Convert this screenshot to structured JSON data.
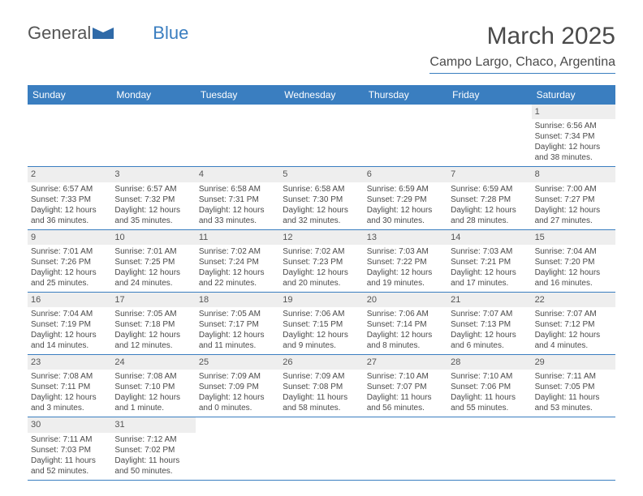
{
  "logo": {
    "part1": "General",
    "part2": "Blue"
  },
  "title": "March 2025",
  "location": "Campo Largo, Chaco, Argentina",
  "day_headers": [
    "Sunday",
    "Monday",
    "Tuesday",
    "Wednesday",
    "Thursday",
    "Friday",
    "Saturday"
  ],
  "colors": {
    "accent": "#3a7ec0",
    "header_cell_bg": "#eeeeee",
    "text": "#4a4a4a"
  },
  "weeks": [
    [
      null,
      null,
      null,
      null,
      null,
      null,
      {
        "d": "1",
        "sr": "Sunrise: 6:56 AM",
        "ss": "Sunset: 7:34 PM",
        "dl1": "Daylight: 12 hours",
        "dl2": "and 38 minutes."
      }
    ],
    [
      {
        "d": "2",
        "sr": "Sunrise: 6:57 AM",
        "ss": "Sunset: 7:33 PM",
        "dl1": "Daylight: 12 hours",
        "dl2": "and 36 minutes."
      },
      {
        "d": "3",
        "sr": "Sunrise: 6:57 AM",
        "ss": "Sunset: 7:32 PM",
        "dl1": "Daylight: 12 hours",
        "dl2": "and 35 minutes."
      },
      {
        "d": "4",
        "sr": "Sunrise: 6:58 AM",
        "ss": "Sunset: 7:31 PM",
        "dl1": "Daylight: 12 hours",
        "dl2": "and 33 minutes."
      },
      {
        "d": "5",
        "sr": "Sunrise: 6:58 AM",
        "ss": "Sunset: 7:30 PM",
        "dl1": "Daylight: 12 hours",
        "dl2": "and 32 minutes."
      },
      {
        "d": "6",
        "sr": "Sunrise: 6:59 AM",
        "ss": "Sunset: 7:29 PM",
        "dl1": "Daylight: 12 hours",
        "dl2": "and 30 minutes."
      },
      {
        "d": "7",
        "sr": "Sunrise: 6:59 AM",
        "ss": "Sunset: 7:28 PM",
        "dl1": "Daylight: 12 hours",
        "dl2": "and 28 minutes."
      },
      {
        "d": "8",
        "sr": "Sunrise: 7:00 AM",
        "ss": "Sunset: 7:27 PM",
        "dl1": "Daylight: 12 hours",
        "dl2": "and 27 minutes."
      }
    ],
    [
      {
        "d": "9",
        "sr": "Sunrise: 7:01 AM",
        "ss": "Sunset: 7:26 PM",
        "dl1": "Daylight: 12 hours",
        "dl2": "and 25 minutes."
      },
      {
        "d": "10",
        "sr": "Sunrise: 7:01 AM",
        "ss": "Sunset: 7:25 PM",
        "dl1": "Daylight: 12 hours",
        "dl2": "and 24 minutes."
      },
      {
        "d": "11",
        "sr": "Sunrise: 7:02 AM",
        "ss": "Sunset: 7:24 PM",
        "dl1": "Daylight: 12 hours",
        "dl2": "and 22 minutes."
      },
      {
        "d": "12",
        "sr": "Sunrise: 7:02 AM",
        "ss": "Sunset: 7:23 PM",
        "dl1": "Daylight: 12 hours",
        "dl2": "and 20 minutes."
      },
      {
        "d": "13",
        "sr": "Sunrise: 7:03 AM",
        "ss": "Sunset: 7:22 PM",
        "dl1": "Daylight: 12 hours",
        "dl2": "and 19 minutes."
      },
      {
        "d": "14",
        "sr": "Sunrise: 7:03 AM",
        "ss": "Sunset: 7:21 PM",
        "dl1": "Daylight: 12 hours",
        "dl2": "and 17 minutes."
      },
      {
        "d": "15",
        "sr": "Sunrise: 7:04 AM",
        "ss": "Sunset: 7:20 PM",
        "dl1": "Daylight: 12 hours",
        "dl2": "and 16 minutes."
      }
    ],
    [
      {
        "d": "16",
        "sr": "Sunrise: 7:04 AM",
        "ss": "Sunset: 7:19 PM",
        "dl1": "Daylight: 12 hours",
        "dl2": "and 14 minutes."
      },
      {
        "d": "17",
        "sr": "Sunrise: 7:05 AM",
        "ss": "Sunset: 7:18 PM",
        "dl1": "Daylight: 12 hours",
        "dl2": "and 12 minutes."
      },
      {
        "d": "18",
        "sr": "Sunrise: 7:05 AM",
        "ss": "Sunset: 7:17 PM",
        "dl1": "Daylight: 12 hours",
        "dl2": "and 11 minutes."
      },
      {
        "d": "19",
        "sr": "Sunrise: 7:06 AM",
        "ss": "Sunset: 7:15 PM",
        "dl1": "Daylight: 12 hours",
        "dl2": "and 9 minutes."
      },
      {
        "d": "20",
        "sr": "Sunrise: 7:06 AM",
        "ss": "Sunset: 7:14 PM",
        "dl1": "Daylight: 12 hours",
        "dl2": "and 8 minutes."
      },
      {
        "d": "21",
        "sr": "Sunrise: 7:07 AM",
        "ss": "Sunset: 7:13 PM",
        "dl1": "Daylight: 12 hours",
        "dl2": "and 6 minutes."
      },
      {
        "d": "22",
        "sr": "Sunrise: 7:07 AM",
        "ss": "Sunset: 7:12 PM",
        "dl1": "Daylight: 12 hours",
        "dl2": "and 4 minutes."
      }
    ],
    [
      {
        "d": "23",
        "sr": "Sunrise: 7:08 AM",
        "ss": "Sunset: 7:11 PM",
        "dl1": "Daylight: 12 hours",
        "dl2": "and 3 minutes."
      },
      {
        "d": "24",
        "sr": "Sunrise: 7:08 AM",
        "ss": "Sunset: 7:10 PM",
        "dl1": "Daylight: 12 hours",
        "dl2": "and 1 minute."
      },
      {
        "d": "25",
        "sr": "Sunrise: 7:09 AM",
        "ss": "Sunset: 7:09 PM",
        "dl1": "Daylight: 12 hours",
        "dl2": "and 0 minutes."
      },
      {
        "d": "26",
        "sr": "Sunrise: 7:09 AM",
        "ss": "Sunset: 7:08 PM",
        "dl1": "Daylight: 11 hours",
        "dl2": "and 58 minutes."
      },
      {
        "d": "27",
        "sr": "Sunrise: 7:10 AM",
        "ss": "Sunset: 7:07 PM",
        "dl1": "Daylight: 11 hours",
        "dl2": "and 56 minutes."
      },
      {
        "d": "28",
        "sr": "Sunrise: 7:10 AM",
        "ss": "Sunset: 7:06 PM",
        "dl1": "Daylight: 11 hours",
        "dl2": "and 55 minutes."
      },
      {
        "d": "29",
        "sr": "Sunrise: 7:11 AM",
        "ss": "Sunset: 7:05 PM",
        "dl1": "Daylight: 11 hours",
        "dl2": "and 53 minutes."
      }
    ],
    [
      {
        "d": "30",
        "sr": "Sunrise: 7:11 AM",
        "ss": "Sunset: 7:03 PM",
        "dl1": "Daylight: 11 hours",
        "dl2": "and 52 minutes."
      },
      {
        "d": "31",
        "sr": "Sunrise: 7:12 AM",
        "ss": "Sunset: 7:02 PM",
        "dl1": "Daylight: 11 hours",
        "dl2": "and 50 minutes."
      },
      null,
      null,
      null,
      null,
      null
    ]
  ]
}
